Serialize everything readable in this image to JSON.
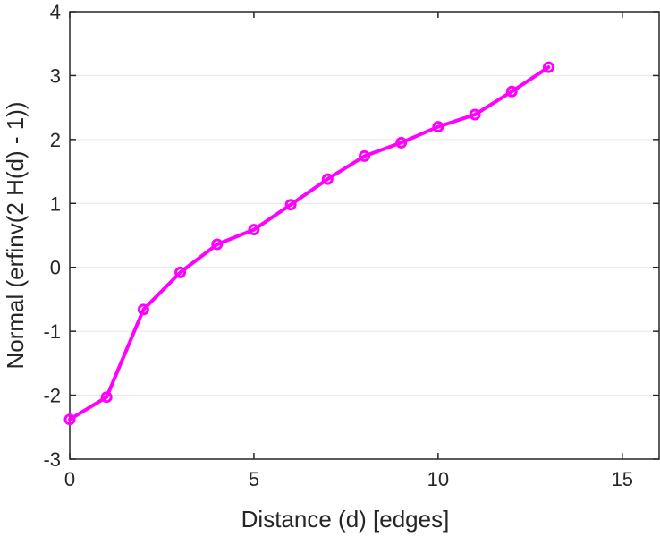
{
  "chart_data": {
    "type": "line",
    "title": "",
    "xlabel": "Distance (d) [edges]",
    "ylabel": "Normal (erfinv(2 H(d) - 1))",
    "xlim": [
      0,
      16
    ],
    "ylim": [
      -3,
      4
    ],
    "xticks": [
      0,
      5,
      10,
      15
    ],
    "yticks": [
      -3,
      -2,
      -1,
      0,
      1,
      2,
      3,
      4
    ],
    "grid": "horizontal",
    "series": [
      {
        "color": "#ff00ff",
        "marker": "circle",
        "x": [
          0,
          1,
          2,
          3,
          4,
          5,
          6,
          7,
          8,
          9,
          10,
          11,
          12,
          13
        ],
        "y": [
          -2.38,
          -2.03,
          -0.66,
          -0.08,
          0.36,
          0.59,
          0.98,
          1.38,
          1.74,
          1.95,
          2.2,
          2.39,
          2.75,
          3.13
        ]
      }
    ]
  }
}
